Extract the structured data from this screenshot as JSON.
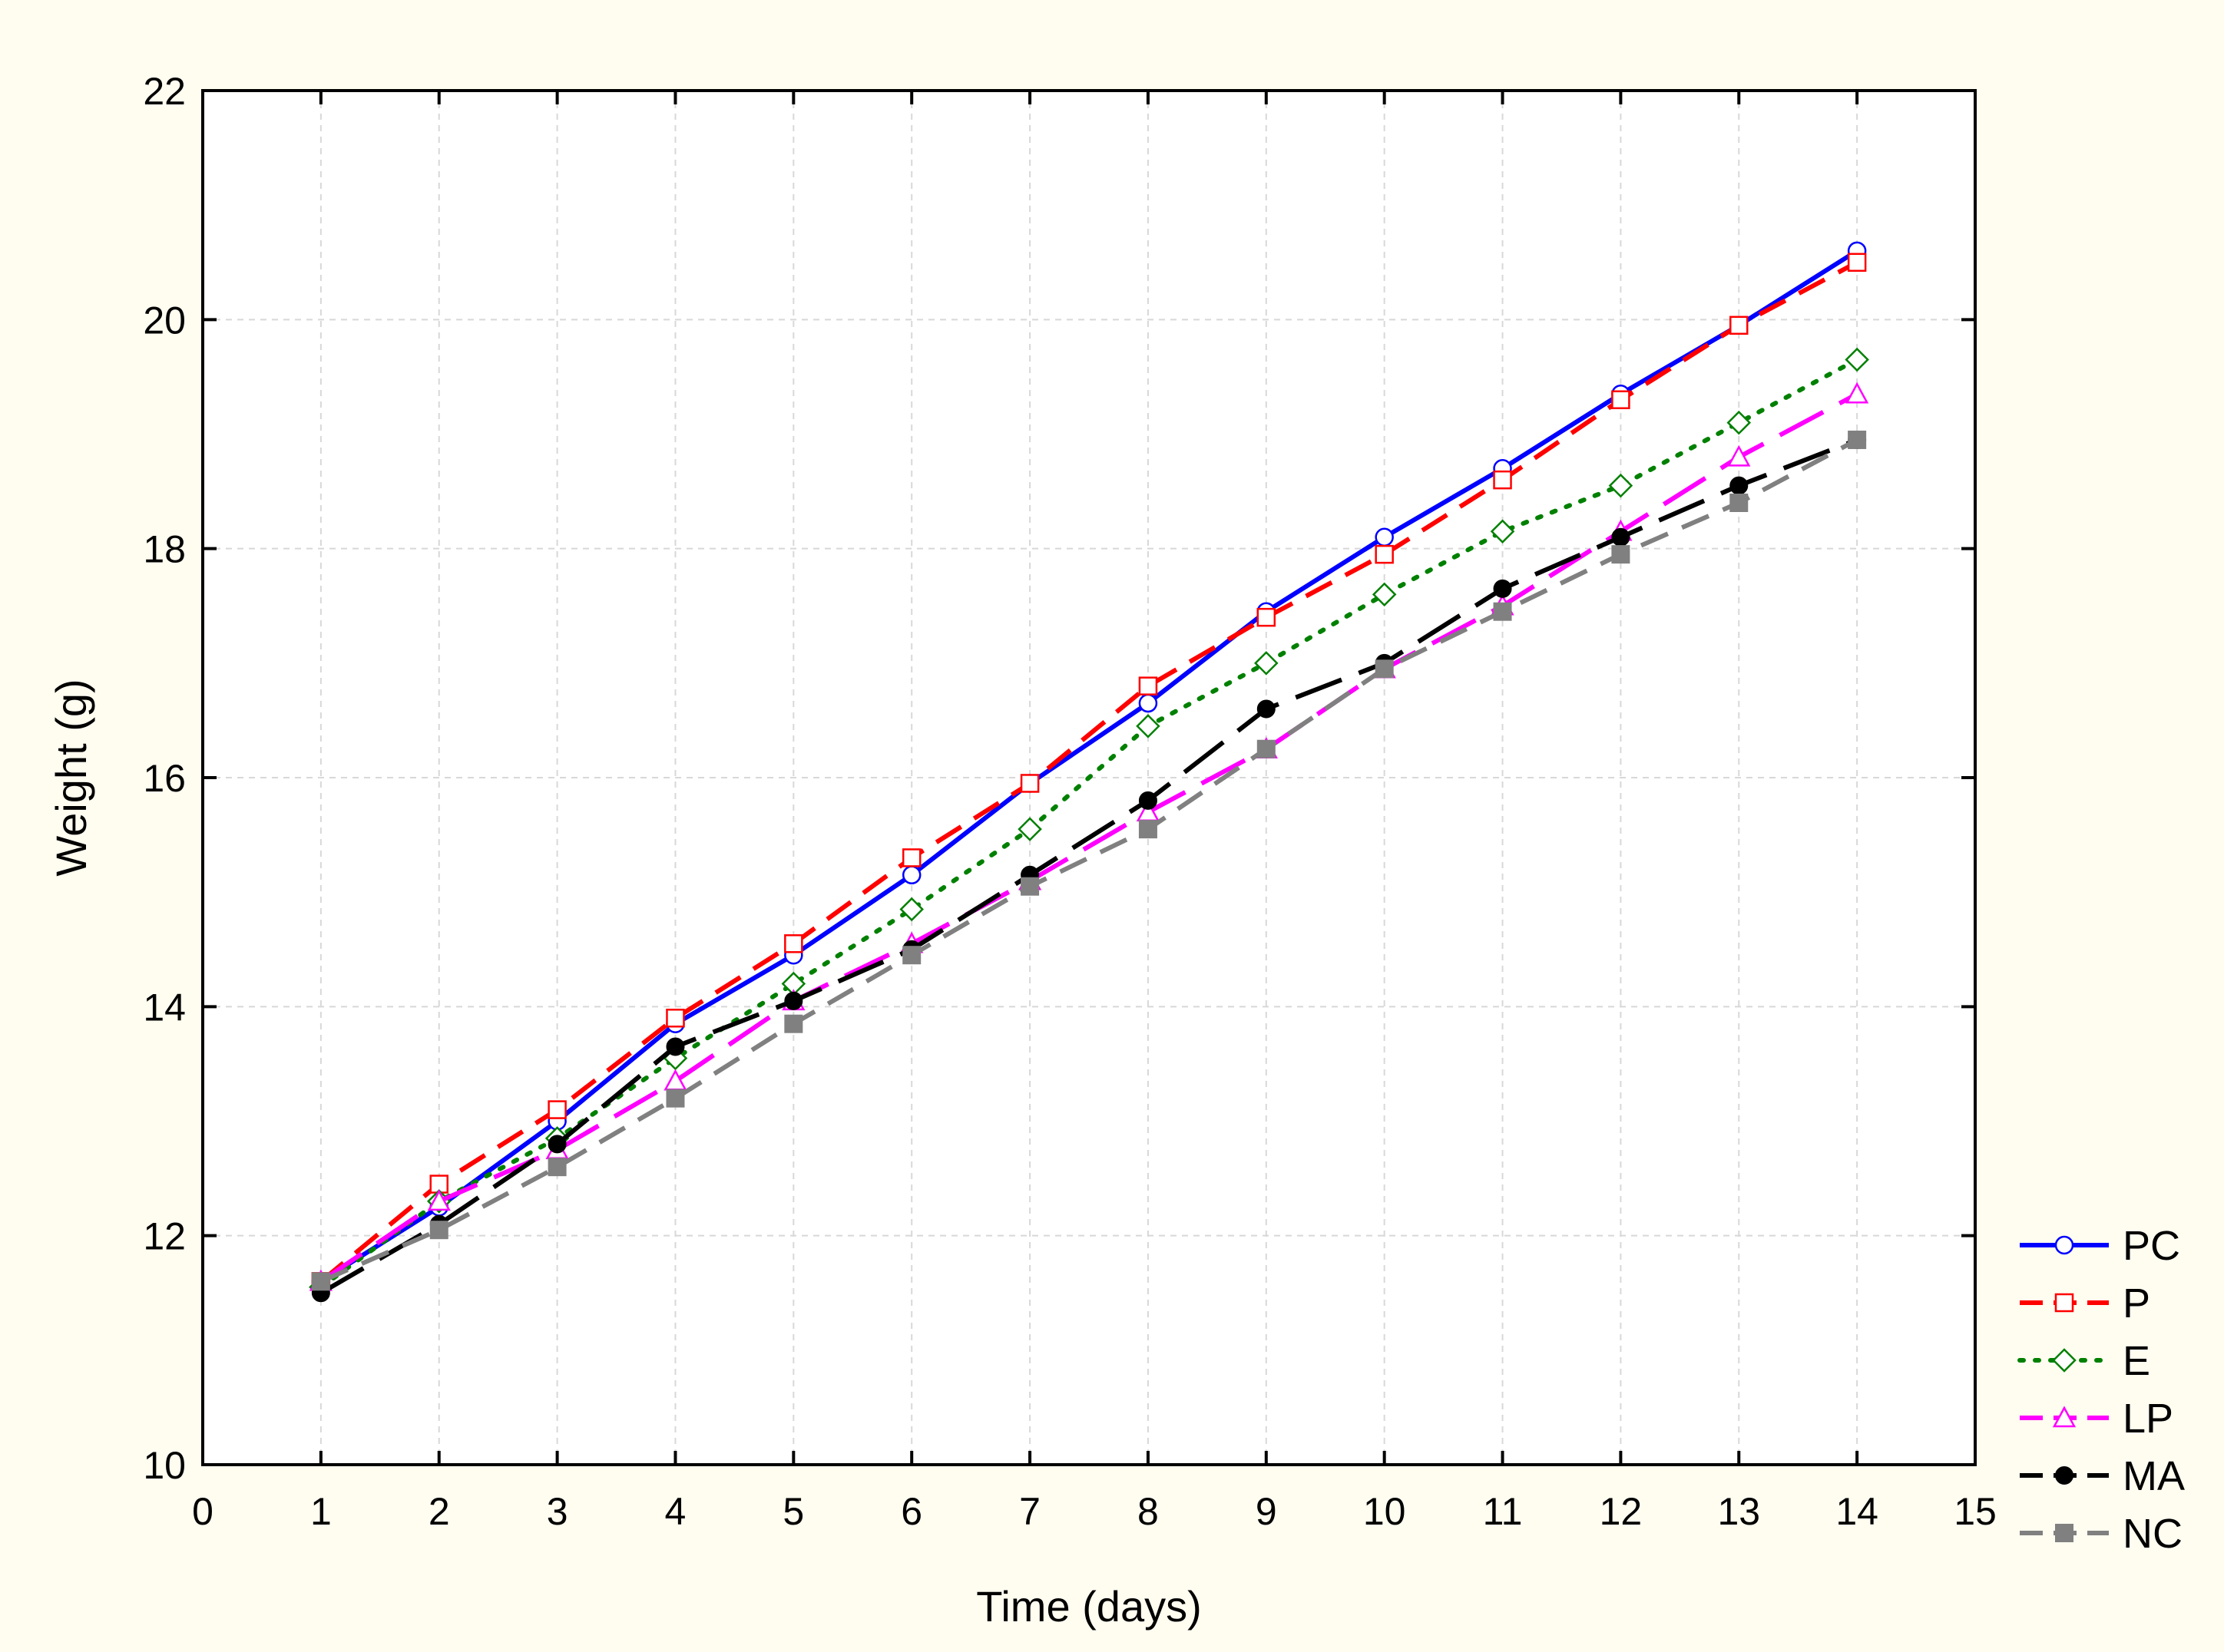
{
  "chart_data": {
    "type": "line",
    "xlabel": "Time (days)",
    "ylabel": "Weight (g)",
    "xlim": [
      0,
      15
    ],
    "ylim": [
      10,
      22
    ],
    "xticks": [
      "0",
      "1",
      "2",
      "3",
      "4",
      "5",
      "6",
      "7",
      "8",
      "9",
      "10",
      "11",
      "12",
      "13",
      "14",
      "15"
    ],
    "yticks": [
      "10",
      "12",
      "14",
      "16",
      "18",
      "20",
      "22"
    ],
    "grid": true,
    "legend_position": "bottom-right",
    "x": [
      1,
      2,
      3,
      4,
      5,
      6,
      7,
      8,
      9,
      10,
      11,
      12,
      13,
      14
    ],
    "series": [
      {
        "name": "PC",
        "color": "#0000ff",
        "marker": "circle-open",
        "dash": "solid",
        "values": [
          11.6,
          12.25,
          13.0,
          13.85,
          14.45,
          15.15,
          15.95,
          16.65,
          17.45,
          18.1,
          18.7,
          19.35,
          19.95,
          20.6
        ]
      },
      {
        "name": "P",
        "color": "#ff0000",
        "marker": "square-open",
        "dash": "dashed",
        "values": [
          11.6,
          12.45,
          13.1,
          13.9,
          14.55,
          15.3,
          15.95,
          16.8,
          17.4,
          17.95,
          18.6,
          19.3,
          19.95,
          20.5
        ]
      },
      {
        "name": "E",
        "color": "#008000",
        "marker": "diamond-open",
        "dash": "dotted",
        "values": [
          11.55,
          12.3,
          12.85,
          13.55,
          14.2,
          14.85,
          15.55,
          16.45,
          17.0,
          17.6,
          18.15,
          18.55,
          19.1,
          19.65
        ]
      },
      {
        "name": "LP",
        "color": "#ff00ff",
        "marker": "triangle-open",
        "dash": "longdash",
        "values": [
          11.6,
          12.3,
          12.75,
          13.35,
          14.05,
          14.55,
          15.1,
          15.7,
          16.25,
          16.95,
          17.5,
          18.15,
          18.8,
          19.35
        ]
      },
      {
        "name": "MA",
        "color": "#000000",
        "marker": "circle-filled",
        "dash": "longdash",
        "values": [
          11.5,
          12.1,
          12.8,
          13.65,
          14.05,
          14.5,
          15.15,
          15.8,
          16.6,
          17.0,
          17.65,
          18.1,
          18.55,
          18.95
        ]
      },
      {
        "name": "NC",
        "color": "#808080",
        "marker": "square-filled",
        "dash": "dashed",
        "values": [
          11.6,
          12.05,
          12.6,
          13.2,
          13.85,
          14.45,
          15.05,
          15.55,
          16.25,
          16.95,
          17.45,
          17.95,
          18.4,
          18.95
        ]
      }
    ]
  }
}
